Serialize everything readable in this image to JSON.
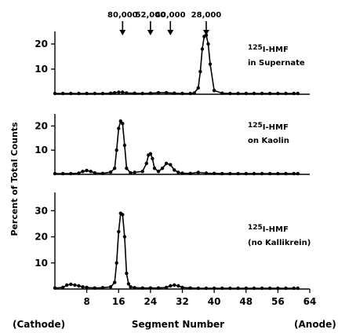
{
  "chart_data": [
    {
      "type": "line",
      "panel": "top",
      "annotation_prefix": "125",
      "annotation_line1": "I-HMF",
      "annotation_line2": "in Supernate",
      "yticks": [
        10,
        20
      ],
      "ylim": [
        0,
        25
      ],
      "xlim": [
        0,
        64
      ],
      "x": [
        0,
        2,
        4,
        6,
        8,
        10,
        12,
        14,
        15,
        16,
        17,
        18,
        20,
        22,
        24,
        26,
        28,
        30,
        32,
        34,
        35,
        36,
        36.5,
        37,
        37.5,
        38,
        38.5,
        39,
        40,
        42,
        44,
        46,
        48,
        50,
        52,
        54,
        56,
        58,
        60,
        61
      ],
      "values": [
        0.3,
        0.3,
        0.3,
        0.3,
        0.3,
        0.3,
        0.3,
        0.4,
        0.6,
        0.8,
        0.8,
        0.5,
        0.4,
        0.3,
        0.4,
        0.6,
        0.6,
        0.4,
        0.3,
        0.3,
        0.5,
        2.5,
        9.0,
        18.0,
        23.0,
        23.5,
        20.0,
        12.0,
        1.5,
        0.4,
        0.3,
        0.3,
        0.3,
        0.3,
        0.3,
        0.3,
        0.3,
        0.3,
        0.3,
        0.3
      ]
    },
    {
      "type": "line",
      "panel": "middle",
      "annotation_prefix": "125",
      "annotation_line1": "I-HMF",
      "annotation_line2": "on Kaolin",
      "yticks": [
        10,
        20
      ],
      "ylim": [
        0,
        25
      ],
      "xlim": [
        0,
        64
      ],
      "x": [
        0,
        2,
        4,
        6,
        7,
        8,
        9,
        10,
        12,
        14,
        15,
        15.5,
        16,
        16.5,
        17,
        17.5,
        18,
        19,
        20,
        22,
        23,
        23.5,
        24,
        24.5,
        25,
        26,
        27,
        28,
        29,
        30,
        31,
        32,
        34,
        36,
        38,
        40,
        42,
        44,
        46,
        48,
        50,
        52,
        54,
        56,
        58,
        60,
        61
      ],
      "values": [
        0.3,
        0.3,
        0.3,
        0.5,
        1.2,
        1.6,
        1.2,
        0.6,
        0.4,
        0.9,
        2.5,
        10.0,
        19.0,
        22.0,
        21.0,
        12.0,
        2.5,
        0.6,
        0.8,
        1.2,
        4.5,
        8.0,
        8.5,
        6.5,
        2.5,
        1.2,
        2.5,
        4.5,
        4.0,
        1.8,
        0.8,
        0.5,
        0.4,
        0.8,
        0.5,
        0.4,
        0.3,
        0.3,
        0.3,
        0.3,
        0.3,
        0.3,
        0.3,
        0.3,
        0.3,
        0.3,
        0.3
      ]
    },
    {
      "type": "line",
      "panel": "bottom",
      "annotation_prefix": "125",
      "annotation_line1": "I-HMF",
      "annotation_line2": "(no Kallikrein)",
      "yticks": [
        10,
        20,
        30
      ],
      "ylim": [
        0,
        37
      ],
      "xlim": [
        0,
        64
      ],
      "xticks": [
        8,
        16,
        24,
        32,
        40,
        48,
        56,
        64
      ],
      "x": [
        0,
        2,
        3,
        4,
        5,
        6,
        7,
        8,
        10,
        12,
        14,
        15,
        15.5,
        16,
        16.5,
        17,
        17.5,
        18,
        18.5,
        19,
        20,
        22,
        24,
        26,
        28,
        29,
        30,
        31,
        32,
        34,
        36,
        38,
        40,
        42,
        44,
        46,
        48,
        50,
        52,
        54,
        56,
        58,
        60,
        61
      ],
      "values": [
        0.4,
        0.6,
        1.5,
        1.8,
        1.5,
        1.2,
        0.8,
        0.6,
        0.4,
        0.5,
        0.8,
        2.5,
        10.0,
        22.0,
        29.0,
        28.5,
        20.0,
        6.0,
        2.0,
        0.8,
        0.5,
        0.4,
        0.4,
        0.4,
        0.6,
        1.2,
        1.5,
        1.2,
        0.6,
        0.4,
        0.3,
        0.3,
        0.3,
        0.3,
        0.3,
        0.3,
        0.3,
        0.3,
        0.3,
        0.3,
        0.3,
        0.3,
        0.3,
        0.3
      ]
    }
  ],
  "markers": [
    {
      "label": "80,000",
      "segment": 17
    },
    {
      "label": "52,000",
      "segment": 24
    },
    {
      "label": "40,000",
      "segment": 29
    },
    {
      "label": "28,000",
      "segment": 38
    }
  ],
  "ylabel": "Percent of Total Counts",
  "xlabel": "Segment Number",
  "left_label": "(Cathode)",
  "right_label": "(Anode)"
}
